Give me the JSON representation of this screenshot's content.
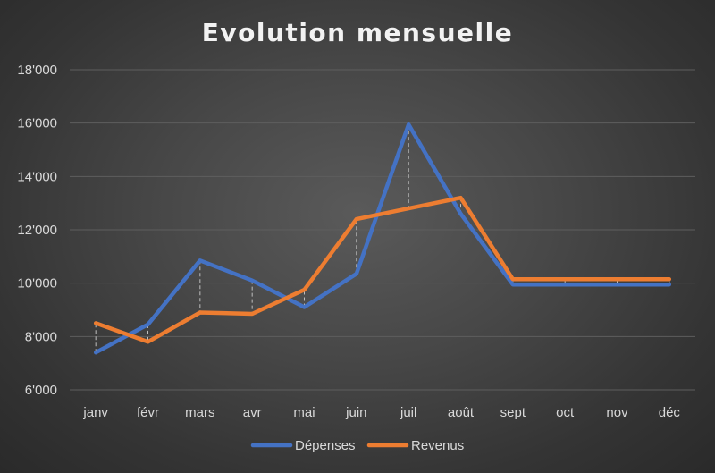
{
  "chart_data": {
    "type": "line",
    "title": "Evolution mensuelle",
    "categories": [
      "janv",
      "févr",
      "mars",
      "avr",
      "mai",
      "juin",
      "juil",
      "août",
      "sept",
      "oct",
      "nov",
      "déc"
    ],
    "series": [
      {
        "name": "Dépenses",
        "color": "#4472c4",
        "values": [
          7400,
          8450,
          10850,
          10100,
          9100,
          10350,
          15950,
          12600,
          9950,
          9950,
          9950,
          9950
        ]
      },
      {
        "name": "Revenus",
        "color": "#ed7d31",
        "values": [
          8500,
          7800,
          8900,
          8850,
          9750,
          12400,
          12800,
          13200,
          10150,
          10150,
          10150,
          10150
        ]
      }
    ],
    "ylim": [
      6000,
      18000
    ],
    "yticks": [
      6000,
      8000,
      10000,
      12000,
      14000,
      16000,
      18000
    ],
    "ytick_labels": [
      "6'000",
      "8'000",
      "10'000",
      "12'000",
      "14'000",
      "16'000",
      "18'000"
    ],
    "xlabel": "",
    "ylabel": "",
    "grid": true,
    "drop_lines": true,
    "legend_position": "bottom",
    "colors": {
      "grid": "#5e5e5e",
      "drop_line": "#bfbfbf",
      "text": "#d9d9d9"
    }
  }
}
